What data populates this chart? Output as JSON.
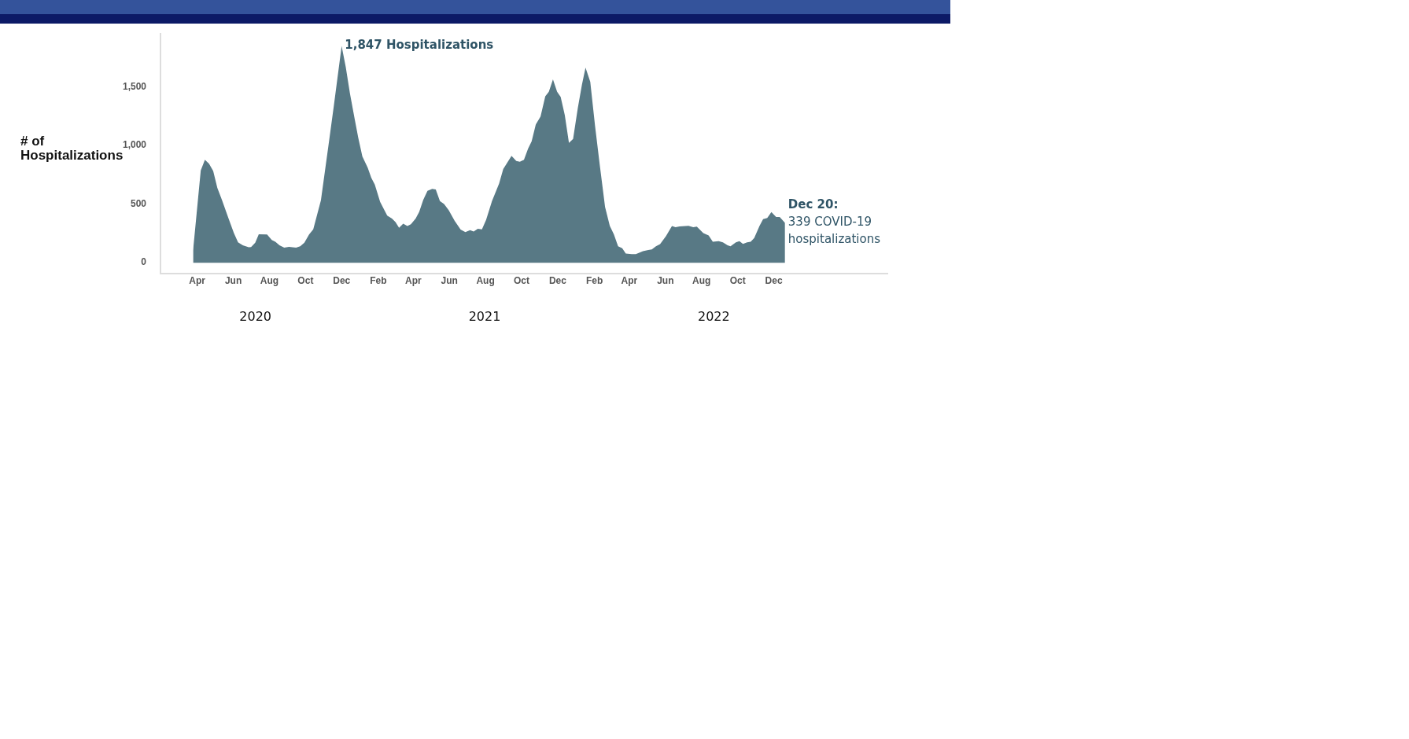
{
  "chart_data": {
    "type": "area",
    "ylabel": "# of Hospitalizations",
    "color": "#587985",
    "x": [
      "2020-03-25",
      "2020-04-07",
      "2020-04-14",
      "2020-04-21",
      "2020-04-28",
      "2020-05-05",
      "2020-05-13",
      "2020-05-24",
      "2020-06-02",
      "2020-06-09",
      "2020-06-17",
      "2020-06-27",
      "2020-07-01",
      "2020-07-08",
      "2020-07-14",
      "2020-07-28",
      "2020-08-05",
      "2020-08-11",
      "2020-08-18",
      "2020-08-26",
      "2020-09-03",
      "2020-09-15",
      "2020-09-22",
      "2020-09-29",
      "2020-10-07",
      "2020-10-14",
      "2020-10-27",
      "2020-11-10",
      "2020-11-18",
      "2020-12-01",
      "2020-12-08",
      "2020-12-15",
      "2020-12-23",
      "2020-12-29",
      "2021-01-05",
      "2021-01-14",
      "2021-01-20",
      "2021-01-26",
      "2021-02-04",
      "2021-02-16",
      "2021-02-24",
      "2021-03-02",
      "2021-03-08",
      "2021-03-15",
      "2021-03-22",
      "2021-03-28",
      "2021-04-05",
      "2021-04-11",
      "2021-04-18",
      "2021-04-25",
      "2021-05-03",
      "2021-05-09",
      "2021-05-16",
      "2021-05-23",
      "2021-05-31",
      "2021-06-10",
      "2021-06-20",
      "2021-06-28",
      "2021-07-06",
      "2021-07-12",
      "2021-07-19",
      "2021-07-26",
      "2021-08-02",
      "2021-08-12",
      "2021-08-24",
      "2021-08-31",
      "2021-09-14",
      "2021-09-22",
      "2021-09-28",
      "2021-10-05",
      "2021-10-12",
      "2021-10-18",
      "2021-10-25",
      "2021-11-02",
      "2021-11-10",
      "2021-11-16",
      "2021-11-23",
      "2021-11-30",
      "2021-12-06",
      "2021-12-13",
      "2021-12-20",
      "2021-12-27",
      "2022-01-04",
      "2022-01-11",
      "2022-01-17",
      "2022-01-25",
      "2022-02-02",
      "2022-02-10",
      "2022-02-19",
      "2022-02-27",
      "2022-03-06",
      "2022-03-13",
      "2022-03-20",
      "2022-03-26",
      "2022-04-05",
      "2022-04-12",
      "2022-04-24",
      "2022-05-03",
      "2022-05-09",
      "2022-05-16",
      "2022-05-23",
      "2022-06-02",
      "2022-06-12",
      "2022-06-18",
      "2022-06-25",
      "2022-07-10",
      "2022-07-18",
      "2022-07-24",
      "2022-08-04",
      "2022-08-13",
      "2022-08-20",
      "2022-08-30",
      "2022-09-06",
      "2022-09-14",
      "2022-09-19",
      "2022-09-28",
      "2022-10-04",
      "2022-10-10",
      "2022-10-17",
      "2022-10-23",
      "2022-10-29",
      "2022-11-07",
      "2022-11-13",
      "2022-11-20",
      "2022-11-27",
      "2022-12-05",
      "2022-12-11",
      "2022-12-20"
    ],
    "values": [
      104,
      787,
      878,
      844,
      782,
      638,
      533,
      377,
      253,
      174,
      149,
      132,
      134,
      171,
      243,
      241,
      194,
      179,
      149,
      129,
      136,
      129,
      141,
      171,
      241,
      285,
      533,
      1047,
      1345,
      1847,
      1667,
      1444,
      1226,
      1067,
      906,
      811,
      725,
      667,
      519,
      402,
      377,
      347,
      298,
      333,
      313,
      328,
      377,
      434,
      538,
      613,
      630,
      625,
      526,
      501,
      447,
      357,
      283,
      261,
      278,
      266,
      290,
      285,
      365,
      526,
      675,
      799,
      911,
      868,
      861,
      878,
      973,
      1035,
      1179,
      1246,
      1419,
      1457,
      1563,
      1457,
      1414,
      1258,
      1022,
      1055,
      1320,
      1519,
      1663,
      1543,
      1171,
      836,
      476,
      315,
      241,
      141,
      124,
      79,
      74,
      74,
      99,
      109,
      114,
      141,
      159,
      228,
      313,
      303,
      310,
      315,
      303,
      308,
      253,
      233,
      179,
      184,
      174,
      149,
      141,
      174,
      184,
      161,
      174,
      179,
      211,
      315,
      372,
      382,
      432,
      390,
      390,
      339
    ],
    "xlim": [
      "2020-01-30",
      "2023-06-11"
    ],
    "ylim": [
      -90,
      1950
    ],
    "xticks": [
      {
        "value": "2020-04-01",
        "label": "Apr"
      },
      {
        "value": "2020-06-01",
        "label": "Jun"
      },
      {
        "value": "2020-08-01",
        "label": "Aug"
      },
      {
        "value": "2020-10-01",
        "label": "Oct"
      },
      {
        "value": "2020-12-01",
        "label": "Dec"
      },
      {
        "value": "2021-02-01",
        "label": "Feb"
      },
      {
        "value": "2021-04-01",
        "label": "Apr"
      },
      {
        "value": "2021-06-01",
        "label": "Jun"
      },
      {
        "value": "2021-08-01",
        "label": "Aug"
      },
      {
        "value": "2021-10-01",
        "label": "Oct"
      },
      {
        "value": "2021-12-01",
        "label": "Dec"
      },
      {
        "value": "2022-02-01",
        "label": "Feb"
      },
      {
        "value": "2022-04-01",
        "label": "Apr"
      },
      {
        "value": "2022-06-01",
        "label": "Jun"
      },
      {
        "value": "2022-08-01",
        "label": "Aug"
      },
      {
        "value": "2022-10-01",
        "label": "Oct"
      },
      {
        "value": "2022-12-01",
        "label": "Dec"
      }
    ],
    "yticks": [
      0,
      500,
      {
        "value": 1000,
        "label": "1,000"
      },
      {
        "value": 1500,
        "label": "1,500"
      }
    ],
    "annotations": [
      {
        "text": "1,847 Hospitalizations",
        "x": "2020-12-01",
        "y": 1847
      },
      {
        "text": "Dec 20:\n339 COVID-19\nhospitalizations",
        "x": "2022-12-20",
        "y": 339
      },
      "2020",
      "2021",
      "2022"
    ],
    "grid": false,
    "legend": false
  }
}
